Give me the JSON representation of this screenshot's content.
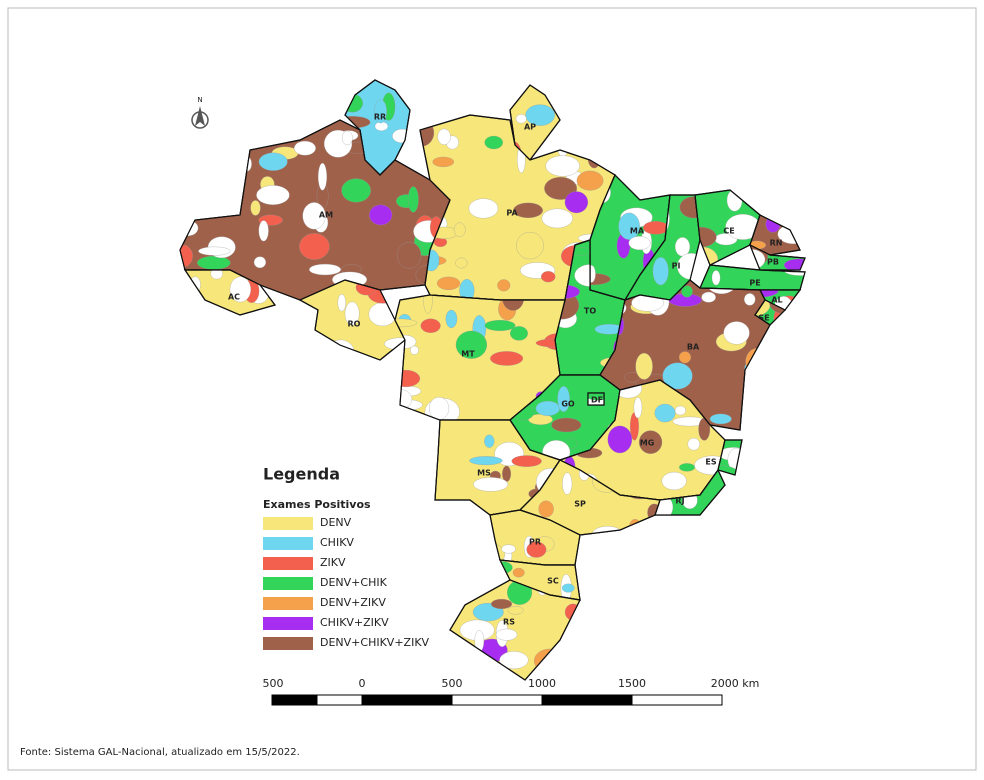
{
  "north_label": "N",
  "states": [
    {
      "label": "RR"
    },
    {
      "label": "AP"
    },
    {
      "label": "AM"
    },
    {
      "label": "AC"
    },
    {
      "label": "RO"
    },
    {
      "label": "PA"
    },
    {
      "label": "MA"
    },
    {
      "label": "PI"
    },
    {
      "label": "CE"
    },
    {
      "label": "RN"
    },
    {
      "label": "PB"
    },
    {
      "label": "PE"
    },
    {
      "label": "AL"
    },
    {
      "label": "SE"
    },
    {
      "label": "TO"
    },
    {
      "label": "BA"
    },
    {
      "label": "MT"
    },
    {
      "label": "GO"
    },
    {
      "label": "DF"
    },
    {
      "label": "MG"
    },
    {
      "label": "ES"
    },
    {
      "label": "RJ"
    },
    {
      "label": "MS"
    },
    {
      "label": "SP"
    },
    {
      "label": "PR"
    },
    {
      "label": "SC"
    },
    {
      "label": "RS"
    }
  ],
  "legend": {
    "title": "Legenda",
    "subtitle": "Exames Positivos",
    "items": [
      {
        "label": "DENV",
        "color": "#f7e77a"
      },
      {
        "label": "CHIKV",
        "color": "#6fd6f0"
      },
      {
        "label": "ZIKV",
        "color": "#f4604e"
      },
      {
        "label": "DENV+CHIK",
        "color": "#33d45a"
      },
      {
        "label": "DENV+ZIKV",
        "color": "#f5a04a"
      },
      {
        "label": "CHIKV+ZIKV",
        "color": "#a72ef0"
      },
      {
        "label": "DENV+CHIKV+ZIKV",
        "color": "#a0614a"
      }
    ]
  },
  "scale_bar": {
    "labels": [
      "500",
      "0",
      "500",
      "1000",
      "1500",
      "2000 km"
    ]
  },
  "source": "Fonte: Sistema GAL-Nacional, atualizado em 15/5/2022."
}
